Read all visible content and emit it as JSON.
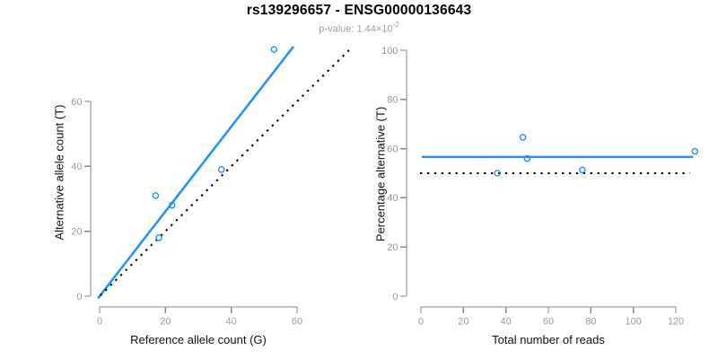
{
  "title": "rs139296657 - ENSG00000136643",
  "p_value": {
    "text": "p-value: 1.44×10",
    "exponent": "-2"
  },
  "colors": {
    "fit_blue": "#1E90FF",
    "reference_black": "#000000",
    "axis_gray": "#888888",
    "tick_label_gray": "#999999",
    "subtitle_gray": "#9e9e9e",
    "axis_title_black": "#111111"
  },
  "chart_data": [
    {
      "type": "scatter",
      "xlabel": "Reference allele count (G)",
      "ylabel": "Alternative allele count (T)",
      "xticks": [
        0,
        20,
        40,
        60
      ],
      "yticks": [
        0,
        20,
        40,
        60
      ],
      "xlim": [
        0,
        76
      ],
      "ylim": [
        0,
        77
      ],
      "grid": false,
      "points": [
        [
          17,
          31
        ],
        [
          18,
          18
        ],
        [
          22,
          28
        ],
        [
          37,
          39
        ],
        [
          53,
          76
        ]
      ],
      "lines": [
        {
          "name": "fit-line",
          "style": "solid",
          "colorKey": "fit_blue",
          "slope": 1.31,
          "intercept": 0,
          "from": [
            -0.5,
            -0.65
          ],
          "to": [
            58.9,
            76.9
          ]
        },
        {
          "name": "identity-line",
          "style": "dotted",
          "colorKey": "reference_black",
          "slope": 1,
          "intercept": 0,
          "from": [
            0.2,
            0.2
          ],
          "to": [
            76.2,
            76.2
          ]
        }
      ]
    },
    {
      "type": "scatter",
      "xlabel": "Total number of reads",
      "ylabel": "Percentage alternative (T)",
      "xticks": [
        0,
        20,
        40,
        60,
        80,
        100,
        120
      ],
      "yticks": [
        0,
        20,
        40,
        60,
        80,
        100
      ],
      "xlim": [
        0,
        129
      ],
      "ylim": [
        0,
        100
      ],
      "grid": false,
      "points": [
        [
          36,
          50
        ],
        [
          48,
          64.6
        ],
        [
          50,
          56
        ],
        [
          76,
          51.3
        ],
        [
          129,
          58.9
        ]
      ],
      "lines": [
        {
          "name": "fit-line",
          "style": "solid",
          "colorKey": "fit_blue",
          "y": 56.6,
          "from": [
            0.4,
            56.6
          ],
          "to": [
            128.2,
            56.6
          ]
        },
        {
          "name": "null-line",
          "style": "dotted",
          "colorKey": "reference_black",
          "y": 50,
          "from": [
            -0.4,
            50
          ],
          "to": [
            126.6,
            50
          ]
        }
      ]
    }
  ]
}
